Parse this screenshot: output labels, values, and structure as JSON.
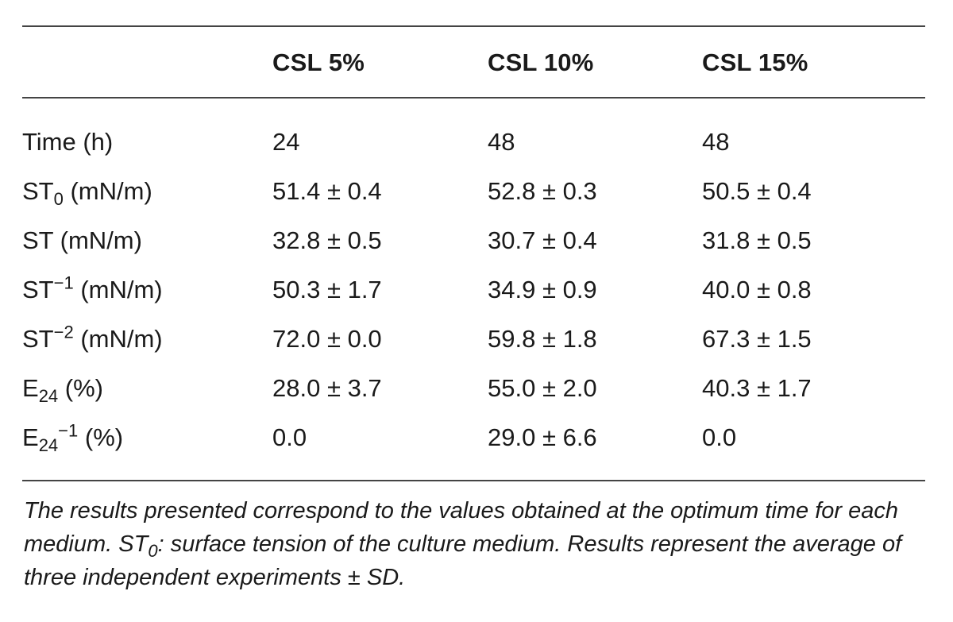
{
  "table": {
    "columns": [
      "CSL 5%",
      "CSL 10%",
      "CSL 15%"
    ],
    "rows": [
      {
        "label_main": "Time (h)",
        "label_sub": "",
        "label_sup": "",
        "label_sup2": "",
        "label_unit": "",
        "values": [
          "24",
          "48",
          "48"
        ]
      },
      {
        "label_main": "ST",
        "label_sub": "0",
        "label_sup": "",
        "label_sup2": "",
        "label_unit": " (mN/m)",
        "values": [
          "51.4 ± 0.4",
          "52.8 ± 0.3",
          "50.5 ± 0.4"
        ]
      },
      {
        "label_main": "ST (mN/m)",
        "label_sub": "",
        "label_sup": "",
        "label_sup2": "",
        "label_unit": "",
        "values": [
          "32.8 ± 0.5",
          "30.7 ± 0.4",
          "31.8 ± 0.5"
        ]
      },
      {
        "label_main": "ST",
        "label_sub": "",
        "label_sup": "−1",
        "label_sup2": "",
        "label_unit": " (mN/m)",
        "values": [
          "50.3 ± 1.7",
          "34.9 ± 0.9",
          "40.0 ± 0.8"
        ]
      },
      {
        "label_main": "ST",
        "label_sub": "",
        "label_sup": "−2",
        "label_sup2": "",
        "label_unit": " (mN/m)",
        "values": [
          "72.0 ± 0.0",
          "59.8 ± 1.8",
          "67.3 ± 1.5"
        ]
      },
      {
        "label_main": "E",
        "label_sub": "24",
        "label_sup": "",
        "label_sup2": "",
        "label_unit": " (%)",
        "values": [
          "28.0 ± 3.7",
          "55.0 ± 2.0",
          "40.3 ± 1.7"
        ]
      },
      {
        "label_main": "E",
        "label_sub": "24",
        "label_sup": "",
        "label_sup2": "−1",
        "label_unit": " (%)",
        "values": [
          "0.0",
          "29.0 ± 6.6",
          "0.0"
        ]
      }
    ]
  },
  "caption": {
    "part1": "The results presented correspond to the values obtained at the optimum time for each medium. ST",
    "sub": "0",
    "part2": ": surface tension of the culture medium. Results represent the average of three independent experiments ± SD."
  }
}
